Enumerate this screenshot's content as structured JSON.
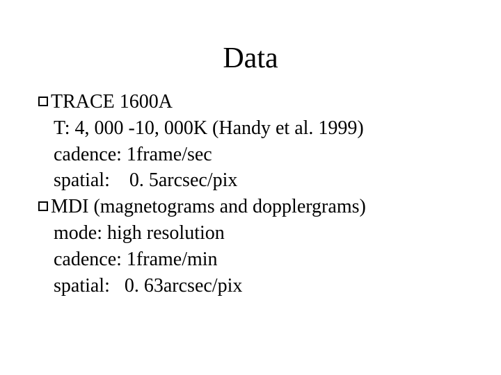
{
  "title": "Data",
  "sections": [
    {
      "heading": "TRACE 1600A",
      "lines": [
        "T: 4, 000 -10, 000K (Handy et al. 1999)",
        "cadence: 1frame/sec",
        "spatial:    0. 5arcsec/pix"
      ]
    },
    {
      "heading": "MDI (magnetograms and dopplergrams)",
      "lines": [
        "mode: high resolution",
        "cadence: 1frame/min",
        "spatial:   0. 63arcsec/pix"
      ]
    }
  ],
  "colors": {
    "background": "#ffffff",
    "text": "#000000",
    "bullet_border": "#000000"
  },
  "typography": {
    "title_fontsize": 42,
    "body_fontsize": 28,
    "font_family": "Times New Roman"
  }
}
